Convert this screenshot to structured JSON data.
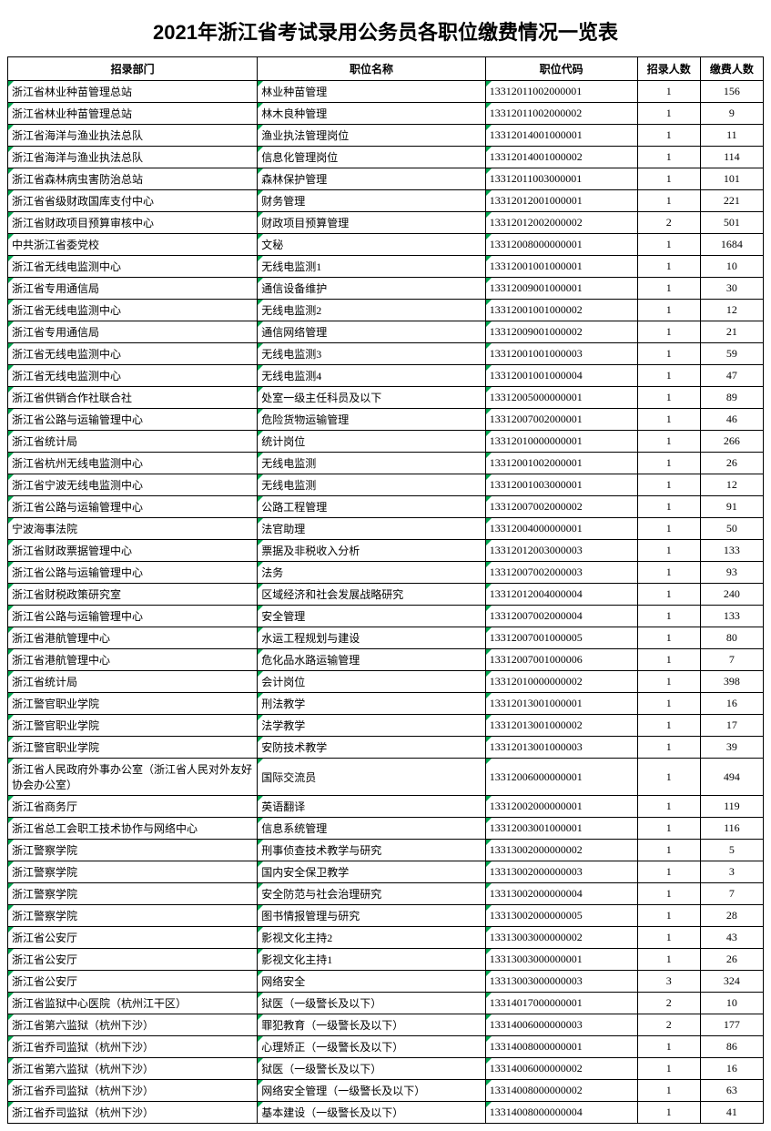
{
  "title": "2021年浙江省考试录用公务员各职位缴费情况一览表",
  "headers": {
    "department": "招录部门",
    "position": "职位名称",
    "code": "职位代码",
    "recruit": "招录人数",
    "paid": "缴费人数"
  },
  "rows": [
    {
      "dept": "浙江省林业种苗管理总站",
      "pos": "林业种苗管理",
      "code": "13312011002000001",
      "recruit": "1",
      "paid": "156"
    },
    {
      "dept": "浙江省林业种苗管理总站",
      "pos": "林木良种管理",
      "code": "13312011002000002",
      "recruit": "1",
      "paid": "9"
    },
    {
      "dept": "浙江省海洋与渔业执法总队",
      "pos": "渔业执法管理岗位",
      "code": "13312014001000001",
      "recruit": "1",
      "paid": "11"
    },
    {
      "dept": "浙江省海洋与渔业执法总队",
      "pos": "信息化管理岗位",
      "code": "13312014001000002",
      "recruit": "1",
      "paid": "114"
    },
    {
      "dept": "浙江省森林病虫害防治总站",
      "pos": "森林保护管理",
      "code": "13312011003000001",
      "recruit": "1",
      "paid": "101"
    },
    {
      "dept": "浙江省省级财政国库支付中心",
      "pos": "财务管理",
      "code": "13312012001000001",
      "recruit": "1",
      "paid": "221"
    },
    {
      "dept": "浙江省财政项目预算审核中心",
      "pos": "财政项目预算管理",
      "code": "13312012002000002",
      "recruit": "2",
      "paid": "501"
    },
    {
      "dept": "中共浙江省委党校",
      "pos": "文秘",
      "code": "13312008000000001",
      "recruit": "1",
      "paid": "1684"
    },
    {
      "dept": "浙江省无线电监测中心",
      "pos": "无线电监测1",
      "code": "13312001001000001",
      "recruit": "1",
      "paid": "10"
    },
    {
      "dept": "浙江省专用通信局",
      "pos": "通信设备维护",
      "code": "13312009001000001",
      "recruit": "1",
      "paid": "30"
    },
    {
      "dept": "浙江省无线电监测中心",
      "pos": "无线电监测2",
      "code": "13312001001000002",
      "recruit": "1",
      "paid": "12"
    },
    {
      "dept": "浙江省专用通信局",
      "pos": "通信网络管理",
      "code": "13312009001000002",
      "recruit": "1",
      "paid": "21"
    },
    {
      "dept": "浙江省无线电监测中心",
      "pos": "无线电监测3",
      "code": "13312001001000003",
      "recruit": "1",
      "paid": "59"
    },
    {
      "dept": "浙江省无线电监测中心",
      "pos": "无线电监测4",
      "code": "13312001001000004",
      "recruit": "1",
      "paid": "47"
    },
    {
      "dept": "浙江省供销合作社联合社",
      "pos": "处室一级主任科员及以下",
      "code": "13312005000000001",
      "recruit": "1",
      "paid": "89"
    },
    {
      "dept": "浙江省公路与运输管理中心",
      "pos": "危险货物运输管理",
      "code": "13312007002000001",
      "recruit": "1",
      "paid": "46"
    },
    {
      "dept": "浙江省统计局",
      "pos": "统计岗位",
      "code": "13312010000000001",
      "recruit": "1",
      "paid": "266"
    },
    {
      "dept": "浙江省杭州无线电监测中心",
      "pos": "无线电监测",
      "code": "13312001002000001",
      "recruit": "1",
      "paid": "26"
    },
    {
      "dept": "浙江省宁波无线电监测中心",
      "pos": "无线电监测",
      "code": "13312001003000001",
      "recruit": "1",
      "paid": "12"
    },
    {
      "dept": "浙江省公路与运输管理中心",
      "pos": "公路工程管理",
      "code": "13312007002000002",
      "recruit": "1",
      "paid": "91"
    },
    {
      "dept": "宁波海事法院",
      "pos": "法官助理",
      "code": "13312004000000001",
      "recruit": "1",
      "paid": "50"
    },
    {
      "dept": "浙江省财政票据管理中心",
      "pos": "票据及非税收入分析",
      "code": "13312012003000003",
      "recruit": "1",
      "paid": "133"
    },
    {
      "dept": "浙江省公路与运输管理中心",
      "pos": "法务",
      "code": "13312007002000003",
      "recruit": "1",
      "paid": "93"
    },
    {
      "dept": "浙江省财税政策研究室",
      "pos": "区域经济和社会发展战略研究",
      "code": "13312012004000004",
      "recruit": "1",
      "paid": "240"
    },
    {
      "dept": "浙江省公路与运输管理中心",
      "pos": "安全管理",
      "code": "13312007002000004",
      "recruit": "1",
      "paid": "133"
    },
    {
      "dept": "浙江省港航管理中心",
      "pos": "水运工程规划与建设",
      "code": "13312007001000005",
      "recruit": "1",
      "paid": "80"
    },
    {
      "dept": "浙江省港航管理中心",
      "pos": "危化品水路运输管理",
      "code": "13312007001000006",
      "recruit": "1",
      "paid": "7"
    },
    {
      "dept": "浙江省统计局",
      "pos": "会计岗位",
      "code": "13312010000000002",
      "recruit": "1",
      "paid": "398"
    },
    {
      "dept": "浙江警官职业学院",
      "pos": "刑法教学",
      "code": "13312013001000001",
      "recruit": "1",
      "paid": "16"
    },
    {
      "dept": "浙江警官职业学院",
      "pos": "法学教学",
      "code": "13312013001000002",
      "recruit": "1",
      "paid": "17"
    },
    {
      "dept": "浙江警官职业学院",
      "pos": "安防技术教学",
      "code": "13312013001000003",
      "recruit": "1",
      "paid": "39"
    },
    {
      "dept": "浙江省人民政府外事办公室（浙江省人民对外友好协会办公室）",
      "pos": "国际交流员",
      "code": "13312006000000001",
      "recruit": "1",
      "paid": "494"
    },
    {
      "dept": "浙江省商务厅",
      "pos": "英语翻译",
      "code": "13312002000000001",
      "recruit": "1",
      "paid": "119"
    },
    {
      "dept": "浙江省总工会职工技术协作与网络中心",
      "pos": "信息系统管理",
      "code": "13312003001000001",
      "recruit": "1",
      "paid": "116"
    },
    {
      "dept": "浙江警察学院",
      "pos": "刑事侦查技术教学与研究",
      "code": "13313002000000002",
      "recruit": "1",
      "paid": "5"
    },
    {
      "dept": "浙江警察学院",
      "pos": "国内安全保卫教学",
      "code": "13313002000000003",
      "recruit": "1",
      "paid": "3"
    },
    {
      "dept": "浙江警察学院",
      "pos": "安全防范与社会治理研究",
      "code": "13313002000000004",
      "recruit": "1",
      "paid": "7"
    },
    {
      "dept": "浙江警察学院",
      "pos": "图书情报管理与研究",
      "code": "13313002000000005",
      "recruit": "1",
      "paid": "28"
    },
    {
      "dept": "浙江省公安厅",
      "pos": "影视文化主持2",
      "code": "13313003000000002",
      "recruit": "1",
      "paid": "43"
    },
    {
      "dept": "浙江省公安厅",
      "pos": "影视文化主持1",
      "code": "13313003000000001",
      "recruit": "1",
      "paid": "26"
    },
    {
      "dept": "浙江省公安厅",
      "pos": "网络安全",
      "code": "13313003000000003",
      "recruit": "3",
      "paid": "324"
    },
    {
      "dept": "浙江省监狱中心医院（杭州江干区）",
      "pos": "狱医（一级警长及以下）",
      "code": "13314017000000001",
      "recruit": "2",
      "paid": "10"
    },
    {
      "dept": "浙江省第六监狱（杭州下沙）",
      "pos": "罪犯教育（一级警长及以下）",
      "code": "13314006000000003",
      "recruit": "2",
      "paid": "177"
    },
    {
      "dept": "浙江省乔司监狱（杭州下沙）",
      "pos": "心理矫正（一级警长及以下）",
      "code": "13314008000000001",
      "recruit": "1",
      "paid": "86"
    },
    {
      "dept": "浙江省第六监狱（杭州下沙）",
      "pos": "狱医（一级警长及以下）",
      "code": "13314006000000002",
      "recruit": "1",
      "paid": "16"
    },
    {
      "dept": "浙江省乔司监狱（杭州下沙）",
      "pos": "网络安全管理（一级警长及以下）",
      "code": "13314008000000002",
      "recruit": "1",
      "paid": "63"
    },
    {
      "dept": "浙江省乔司监狱（杭州下沙）",
      "pos": "基本建设（一级警长及以下）",
      "code": "13314008000000004",
      "recruit": "1",
      "paid": "41"
    }
  ]
}
